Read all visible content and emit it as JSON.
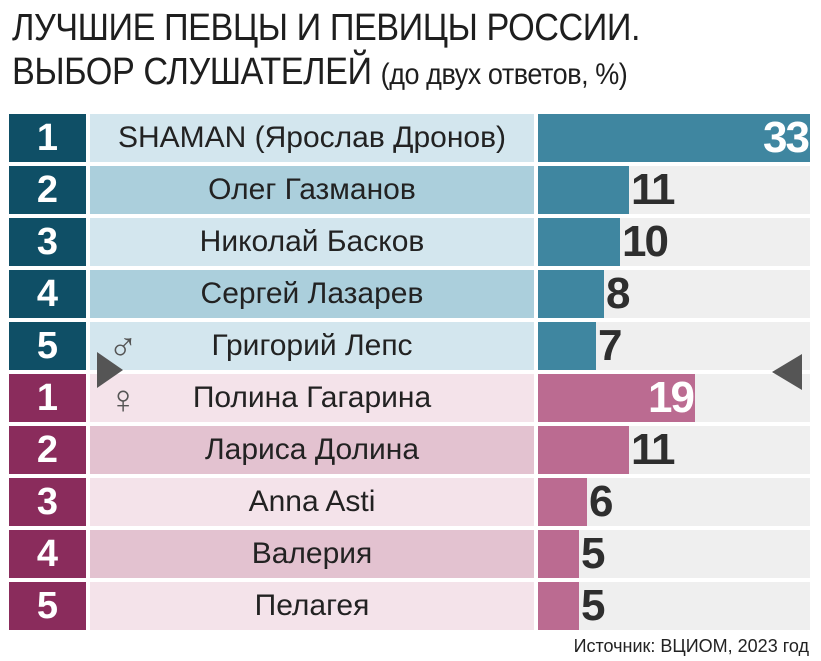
{
  "title": {
    "line1": "ЛУЧШИЕ ПЕВЦЫ И ПЕВИЦЫ РОССИИ.",
    "line2": "ВЫБОР СЛУШАТЕЛЕЙ",
    "note": "(до двух ответов, %)"
  },
  "source": "Источник: ВЦИОМ, 2023 год",
  "icons": {
    "male": "♂",
    "female": "♀"
  },
  "colors": {
    "male_rank": "#0f4f66",
    "male_bar": "#3f86a0",
    "female_rank": "#8a2c5c",
    "female_bar": "#bb6b91"
  },
  "chart_data": {
    "type": "bar",
    "title": "ЛУЧШИЕ ПЕВЦЫ И ПЕВИЦЫ РОССИИ. ВЫБОР СЛУШАТЕЛЕЙ (до двух ответов, %)",
    "orientation": "horizontal",
    "xlim": [
      0,
      33
    ],
    "groups": [
      {
        "gender": "male",
        "items": [
          {
            "rank": "1",
            "name": "SHAMAN (Ярослав Дронов)",
            "value": 33
          },
          {
            "rank": "2",
            "name": "Олег Газманов",
            "value": 11
          },
          {
            "rank": "3",
            "name": "Николай Басков",
            "value": 10
          },
          {
            "rank": "4",
            "name": "Сергей Лазарев",
            "value": 8
          },
          {
            "rank": "5",
            "name": "Григорий Лепс",
            "value": 7
          }
        ]
      },
      {
        "gender": "female",
        "items": [
          {
            "rank": "1",
            "name": "Полина Гагарина",
            "value": 19
          },
          {
            "rank": "2",
            "name": "Лариса Долина",
            "value": 11
          },
          {
            "rank": "3",
            "name": "Anna Asti",
            "value": 6
          },
          {
            "rank": "4",
            "name": "Валерия",
            "value": 5
          },
          {
            "rank": "5",
            "name": "Пелагея",
            "value": 5
          }
        ]
      }
    ]
  }
}
